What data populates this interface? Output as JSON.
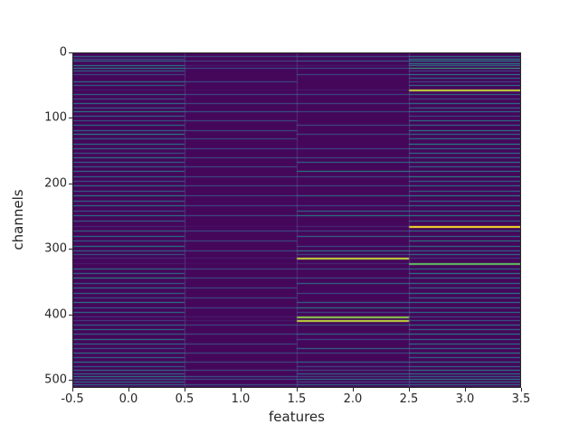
{
  "figure": {
    "xlabel": "features",
    "ylabel": "channels"
  },
  "chart_data": {
    "type": "heatmap",
    "title": "",
    "xlabel": "features",
    "ylabel": "channels",
    "colormap": "viridis",
    "x_range": [
      -0.5,
      3.5
    ],
    "y_range": [
      0,
      512
    ],
    "y_axis_inverted": true,
    "n_features": 4,
    "n_channels": 512,
    "background_value": 0.02,
    "x_tick_values": [
      -0.5,
      0.0,
      0.5,
      1.0,
      1.5,
      2.0,
      2.5,
      3.0,
      3.5
    ],
    "x_tick_labels": [
      "-0.5",
      "0.0",
      "0.5",
      "1.0",
      "1.5",
      "2.0",
      "2.5",
      "3.0",
      "3.5"
    ],
    "y_tick_values": [
      0,
      100,
      200,
      300,
      400,
      500
    ],
    "y_tick_labels": [
      "0",
      "100",
      "200",
      "300",
      "400",
      "500"
    ],
    "column_boundaries": [
      0.5,
      1.5,
      2.5
    ],
    "rows": [
      {
        "c": 6,
        "v": [
          0.45,
          0.3,
          0.3,
          0.5
        ]
      },
      {
        "c": 10,
        "v": [
          0.3,
          0.02,
          0.02,
          0.55
        ]
      },
      {
        "c": 13,
        "v": [
          0.5,
          0.3,
          0.4,
          0.6
        ]
      },
      {
        "c": 17,
        "v": [
          0.02,
          0.02,
          0.02,
          0.6
        ]
      },
      {
        "c": 20,
        "v": [
          0.55,
          0.1,
          0.1,
          0.5
        ]
      },
      {
        "c": 24,
        "v": [
          0.6,
          0.3,
          0.3,
          0.75
        ]
      },
      {
        "c": 28,
        "v": [
          0.45,
          0.02,
          0.02,
          0.3
        ]
      },
      {
        "c": 33,
        "v": [
          0.3,
          0.02,
          0.3,
          0.55
        ]
      },
      {
        "c": 38,
        "v": [
          0.02,
          0.02,
          0.02,
          0.45
        ]
      },
      {
        "c": 44,
        "v": [
          0.5,
          0.3,
          0.02,
          0.3
        ]
      },
      {
        "c": 50,
        "v": [
          0.4,
          0.02,
          0.02,
          0.5
        ]
      },
      {
        "c": 57,
        "v": [
          0.1,
          0.05,
          0.1,
          0.95
        ]
      },
      {
        "c": 63,
        "v": [
          0.45,
          0.3,
          0.3,
          0.45
        ]
      },
      {
        "c": 70,
        "v": [
          0.35,
          0.02,
          0.02,
          0.3
        ]
      },
      {
        "c": 77,
        "v": [
          0.5,
          0.3,
          0.3,
          0.5
        ]
      },
      {
        "c": 84,
        "v": [
          0.4,
          0.02,
          0.02,
          0.45
        ]
      },
      {
        "c": 90,
        "v": [
          0.55,
          0.35,
          0.3,
          0.5
        ]
      },
      {
        "c": 97,
        "v": [
          0.45,
          0.02,
          0.02,
          0.3
        ]
      },
      {
        "c": 104,
        "v": [
          0.35,
          0.3,
          0.02,
          0.5
        ]
      },
      {
        "c": 110,
        "v": [
          0.5,
          0.02,
          0.3,
          0.45
        ]
      },
      {
        "c": 118,
        "v": [
          0.45,
          0.3,
          0.02,
          0.55
        ]
      },
      {
        "c": 124,
        "v": [
          0.6,
          0.02,
          0.3,
          0.45
        ]
      },
      {
        "c": 131,
        "v": [
          0.4,
          0.3,
          0.02,
          0.5
        ]
      },
      {
        "c": 139,
        "v": [
          0.5,
          0.02,
          0.02,
          0.6
        ]
      },
      {
        "c": 146,
        "v": [
          0.45,
          0.3,
          0.3,
          0.45
        ]
      },
      {
        "c": 153,
        "v": [
          0.35,
          0.02,
          0.02,
          0.5
        ]
      },
      {
        "c": 160,
        "v": [
          0.55,
          0.3,
          0.3,
          0.45
        ]
      },
      {
        "c": 167,
        "v": [
          0.45,
          0.02,
          0.45,
          0.55
        ]
      },
      {
        "c": 174,
        "v": [
          0.4,
          0.3,
          0.02,
          0.45
        ]
      },
      {
        "c": 181,
        "v": [
          0.5,
          0.02,
          0.55,
          0.5
        ]
      },
      {
        "c": 189,
        "v": [
          0.45,
          0.3,
          0.3,
          0.6
        ]
      },
      {
        "c": 196,
        "v": [
          0.35,
          0.02,
          0.02,
          0.45
        ]
      },
      {
        "c": 203,
        "v": [
          0.5,
          0.3,
          0.3,
          0.5
        ]
      },
      {
        "c": 211,
        "v": [
          0.4,
          0.02,
          0.02,
          0.45
        ]
      },
      {
        "c": 218,
        "v": [
          0.55,
          0.3,
          0.45,
          0.55
        ]
      },
      {
        "c": 226,
        "v": [
          0.45,
          0.02,
          0.02,
          0.45
        ]
      },
      {
        "c": 233,
        "v": [
          0.5,
          0.3,
          0.3,
          0.5
        ]
      },
      {
        "c": 241,
        "v": [
          0.35,
          0.02,
          0.45,
          0.45
        ]
      },
      {
        "c": 248,
        "v": [
          0.5,
          0.3,
          0.55,
          0.55
        ]
      },
      {
        "c": 256,
        "v": [
          0.4,
          0.02,
          0.02,
          0.45
        ]
      },
      {
        "c": 265,
        "v": [
          0.15,
          0.05,
          0.15,
          1.0
        ]
      },
      {
        "c": 272,
        "v": [
          0.45,
          0.3,
          0.3,
          0.5
        ]
      },
      {
        "c": 280,
        "v": [
          0.5,
          0.02,
          0.45,
          0.45
        ]
      },
      {
        "c": 287,
        "v": [
          0.4,
          0.3,
          0.02,
          0.55
        ]
      },
      {
        "c": 295,
        "v": [
          0.55,
          0.02,
          0.3,
          0.5
        ]
      },
      {
        "c": 302,
        "v": [
          0.45,
          0.3,
          0.55,
          0.45
        ]
      },
      {
        "c": 308,
        "v": [
          0.35,
          0.02,
          0.3,
          0.5
        ]
      },
      {
        "c": 313,
        "v": [
          0.15,
          0.1,
          0.95,
          0.2
        ]
      },
      {
        "c": 322,
        "v": [
          0.1,
          0.05,
          0.15,
          0.85
        ]
      },
      {
        "c": 330,
        "v": [
          0.5,
          0.3,
          0.3,
          0.45
        ]
      },
      {
        "c": 337,
        "v": [
          0.45,
          0.02,
          0.02,
          0.55
        ]
      },
      {
        "c": 344,
        "v": [
          0.6,
          0.3,
          0.3,
          0.45
        ]
      },
      {
        "c": 352,
        "v": [
          0.4,
          0.02,
          0.45,
          0.5
        ]
      },
      {
        "c": 359,
        "v": [
          0.5,
          0.3,
          0.02,
          0.45
        ]
      },
      {
        "c": 367,
        "v": [
          0.45,
          0.02,
          0.3,
          0.55
        ]
      },
      {
        "c": 374,
        "v": [
          0.35,
          0.3,
          0.02,
          0.45
        ]
      },
      {
        "c": 381,
        "v": [
          0.55,
          0.02,
          0.45,
          0.5
        ]
      },
      {
        "c": 389,
        "v": [
          0.4,
          0.3,
          0.55,
          0.45
        ]
      },
      {
        "c": 396,
        "v": [
          0.5,
          0.02,
          0.3,
          0.5
        ]
      },
      {
        "c": 403,
        "v": [
          0.2,
          0.1,
          0.9,
          0.3
        ]
      },
      {
        "c": 408,
        "v": [
          0.25,
          0.1,
          0.95,
          0.35
        ]
      },
      {
        "c": 415,
        "v": [
          0.45,
          0.3,
          0.3,
          0.5
        ]
      },
      {
        "c": 422,
        "v": [
          0.5,
          0.02,
          0.02,
          0.45
        ]
      },
      {
        "c": 429,
        "v": [
          0.4,
          0.3,
          0.45,
          0.55
        ]
      },
      {
        "c": 437,
        "v": [
          0.55,
          0.02,
          0.3,
          0.45
        ]
      },
      {
        "c": 444,
        "v": [
          0.45,
          0.3,
          0.02,
          0.5
        ]
      },
      {
        "c": 451,
        "v": [
          0.35,
          0.02,
          0.45,
          0.45
        ]
      },
      {
        "c": 458,
        "v": [
          0.5,
          0.3,
          0.3,
          0.55
        ]
      },
      {
        "c": 465,
        "v": [
          0.45,
          0.02,
          0.02,
          0.45
        ]
      },
      {
        "c": 472,
        "v": [
          0.55,
          0.3,
          0.45,
          0.5
        ]
      },
      {
        "c": 479,
        "v": [
          0.4,
          0.02,
          0.3,
          0.45
        ]
      },
      {
        "c": 485,
        "v": [
          0.5,
          0.3,
          0.3,
          0.55
        ]
      },
      {
        "c": 490,
        "v": [
          0.45,
          0.02,
          0.45,
          0.5
        ]
      },
      {
        "c": 494,
        "v": [
          0.55,
          0.35,
          0.3,
          0.45
        ]
      },
      {
        "c": 498,
        "v": [
          0.4,
          0.3,
          0.5,
          0.55
        ]
      },
      {
        "c": 502,
        "v": [
          0.5,
          0.02,
          0.3,
          0.5
        ]
      },
      {
        "c": 506,
        "v": [
          0.45,
          0.35,
          0.45,
          0.45
        ]
      },
      {
        "c": 510,
        "v": [
          0.55,
          0.3,
          0.3,
          0.55
        ]
      }
    ]
  }
}
